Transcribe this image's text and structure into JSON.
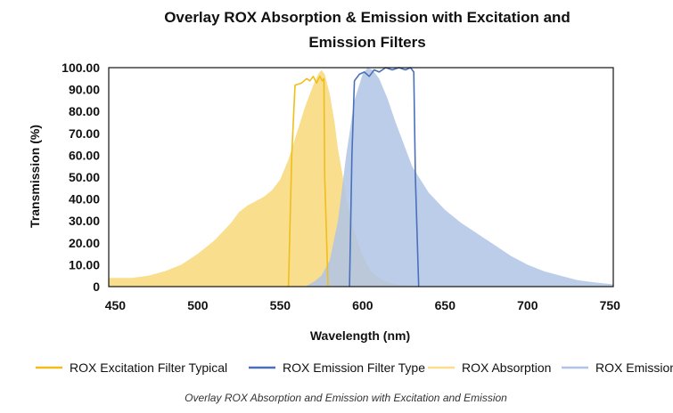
{
  "chart_data": {
    "type": "area",
    "title_lines": [
      "Overlay ROX Absorption & Emission with Excitation and",
      "Emission Filters"
    ],
    "xlabel": "Wavelength (nm)",
    "ylabel": "Transmission (%)",
    "xlim": [
      446,
      752
    ],
    "ylim": [
      0,
      100
    ],
    "x_ticks": [
      "450",
      "500",
      "550",
      "600",
      "650",
      "700",
      "750"
    ],
    "x_tick_values": [
      450,
      500,
      550,
      600,
      650,
      700,
      750
    ],
    "y_ticks": [
      "100.00",
      "90.00",
      "80.00",
      "70.00",
      "60.00",
      "50.00",
      "40.00",
      "30.00",
      "20.00",
      "10.00",
      "0"
    ],
    "y_tick_values": [
      100,
      90,
      80,
      70,
      60,
      50,
      40,
      30,
      20,
      10,
      0
    ],
    "grid": false,
    "legend_position": "bottom",
    "caption": "Overlay ROX Absorption and Emission with Excitation and Emission",
    "series": [
      {
        "name": "ROX Absorption",
        "kind": "area",
        "color": "#F9DE8E",
        "x": [
          446,
          460,
          470,
          480,
          490,
          500,
          510,
          520,
          525,
          530,
          535,
          540,
          545,
          550,
          555,
          560,
          565,
          570,
          573,
          575,
          577,
          580,
          583,
          585,
          588,
          590,
          595,
          600,
          605,
          610,
          615,
          620,
          630,
          640,
          660,
          752
        ],
        "y": [
          4,
          4,
          5,
          7,
          10,
          15,
          21,
          29,
          34,
          37,
          39,
          41,
          44,
          49,
          58,
          70,
          82,
          92,
          97,
          99,
          97,
          88,
          75,
          63,
          50,
          40,
          25,
          14,
          7,
          4,
          2,
          1,
          0.5,
          0,
          0,
          0
        ]
      },
      {
        "name": "ROX Emission",
        "kind": "area",
        "color": "#B0C4E6",
        "x": [
          565,
          570,
          575,
          580,
          585,
          590,
          595,
          600,
          603,
          606,
          610,
          615,
          620,
          625,
          630,
          640,
          650,
          660,
          670,
          680,
          690,
          700,
          710,
          720,
          730,
          740,
          752
        ],
        "y": [
          0,
          2,
          5,
          12,
          30,
          60,
          85,
          97,
          100,
          99,
          95,
          86,
          75,
          65,
          55,
          43,
          35,
          29,
          24,
          19,
          14,
          10,
          7,
          5,
          3,
          2,
          1
        ]
      },
      {
        "name": "ROX Excitation Filter Typical",
        "kind": "line",
        "color": "#F0BE1A",
        "x": [
          555,
          557,
          559,
          563,
          566,
          568,
          570,
          572,
          574,
          575.5,
          576.5,
          577,
          579
        ],
        "y": [
          0,
          60,
          92,
          93,
          95,
          94,
          96,
          93,
          96,
          94,
          95,
          50,
          0
        ]
      },
      {
        "name": "ROX Emission Filter Type",
        "kind": "line",
        "color": "#4A70B8",
        "x": [
          592,
          593.5,
          595,
          598,
          601,
          604,
          607,
          610,
          614,
          618,
          622,
          626,
          629,
          631,
          632,
          634
        ],
        "y": [
          0,
          60,
          94,
          97,
          98,
          96,
          99,
          98,
          100,
          99,
          100,
          99,
          100,
          98,
          50,
          0
        ]
      }
    ]
  }
}
